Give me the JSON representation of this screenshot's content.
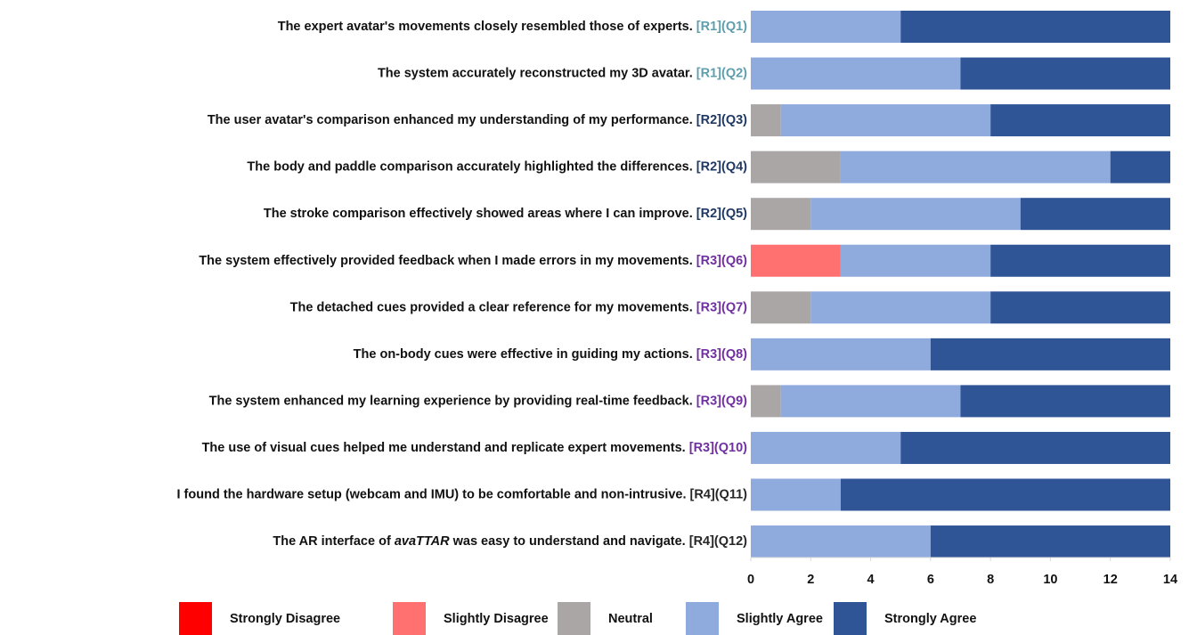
{
  "chart_data": {
    "type": "stacked_barh",
    "categories": [
      "The expert avatar's movements closely resembled those of experts.",
      "The system accurately reconstructed my 3D avatar.",
      "The user avatar's comparison enhanced my understanding of my performance.",
      "The body and paddle comparison accurately highlighted the differences.",
      "The stroke comparison effectively showed areas where I can improve.",
      "The system effectively provided feedback when I made errors in my movements.",
      "The detached cues provided a clear reference for my movements.",
      "The on-body cues were effective in guiding my actions.",
      "The system enhanced my learning experience by providing real-time feedback.",
      "The use of visual cues helped me understand and replicate expert movements.",
      "I found the hardware setup (webcam and IMU) to be comfortable and non-intrusive.",
      "The AR interface of avaTTAR was easy to understand and navigate."
    ],
    "italic_term": "avaTTAR",
    "tags": [
      "[R1](Q1)",
      "[R1](Q2)",
      "[R2](Q3)",
      "[R2](Q4)",
      "[R2](Q5)",
      "[R3](Q6)",
      "[R3](Q7)",
      "[R3](Q8)",
      "[R3](Q9)",
      "[R3](Q10)",
      "[R4](Q11)",
      "[R4](Q12)"
    ],
    "tag_colors": [
      "#5f9ead",
      "#5f9ead",
      "#1f3864",
      "#1f3864",
      "#1f3864",
      "#7030a0",
      "#7030a0",
      "#7030a0",
      "#7030a0",
      "#7030a0",
      "#262626",
      "#262626"
    ],
    "series": [
      {
        "name": "Strongly Disagree",
        "color": "#ff0000",
        "values": [
          0,
          0,
          0,
          0,
          0,
          0,
          0,
          0,
          0,
          0,
          0,
          0
        ]
      },
      {
        "name": "Slightly Disagree",
        "color": "#ff7171",
        "values": [
          0,
          0,
          0,
          0,
          0,
          3,
          0,
          0,
          0,
          0,
          0,
          0
        ]
      },
      {
        "name": "Neutral",
        "color": "#aaa6a6",
        "values": [
          0,
          0,
          1,
          3,
          2,
          0,
          2,
          0,
          1,
          0,
          0,
          0
        ]
      },
      {
        "name": "Slightly Agree",
        "color": "#8faadc",
        "values": [
          5,
          7,
          7,
          9,
          7,
          5,
          6,
          6,
          6,
          5,
          3,
          6
        ]
      },
      {
        "name": "Strongly Agree",
        "color": "#2f5597",
        "values": [
          9,
          7,
          6,
          2,
          5,
          6,
          6,
          8,
          7,
          9,
          11,
          8
        ]
      }
    ],
    "xlim": [
      0,
      14
    ],
    "xticks": [
      0,
      2,
      4,
      6,
      8,
      10,
      12,
      14
    ],
    "legend": "bottom"
  }
}
